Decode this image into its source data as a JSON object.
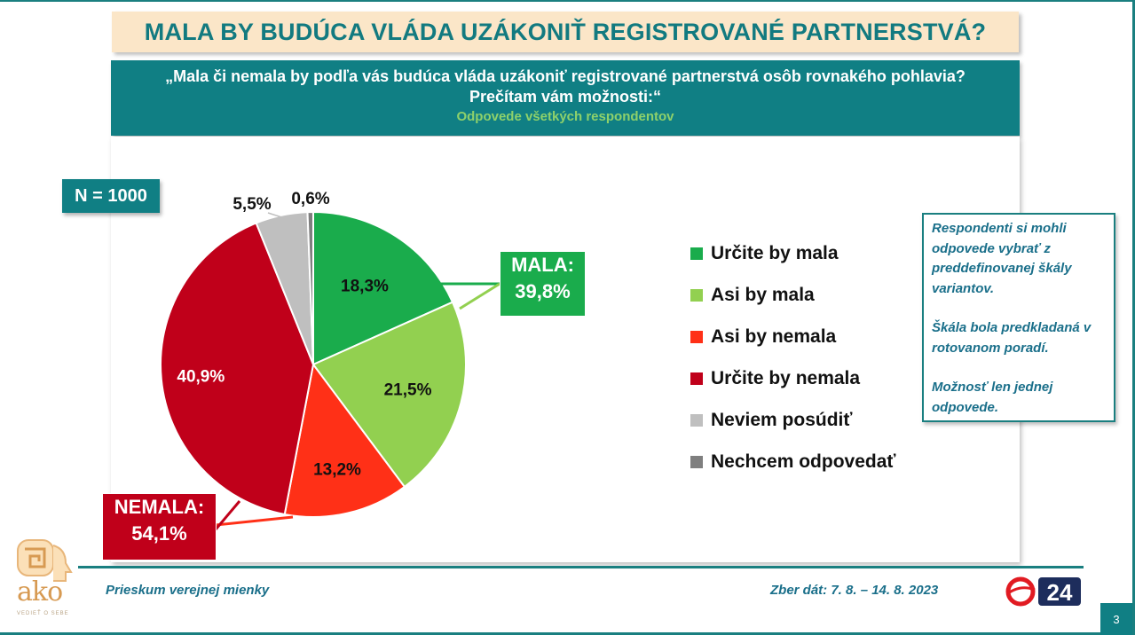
{
  "title": "MALA BY BUDÚCA VLÁDA UZÁKONIŤ REGISTROVANÉ PARTNERSTVÁ?",
  "question": {
    "line1": "„Mala či nemala by podľa vás budúca vláda uzákoniť registrované partnerstvá osôb rovnakého pohlavia?",
    "line2": "Prečítam vám možnosti:“",
    "subtitle": "Odpovede všetkých respondentov"
  },
  "sample": "N = 1000",
  "chart_data": {
    "type": "pie",
    "start_angle_deg": 0,
    "direction": "clockwise",
    "slices": [
      {
        "label": "Určite by mala",
        "value": 18.3,
        "value_label": "18,3%",
        "color": "#1aac4c"
      },
      {
        "label": "Asi by mala",
        "value": 21.5,
        "value_label": "21,5%",
        "color": "#92d050"
      },
      {
        "label": "Asi by nemala",
        "value": 13.2,
        "value_label": "13,2%",
        "color": "#ff3017"
      },
      {
        "label": "Určite by nemala",
        "value": 40.9,
        "value_label": "40,9%",
        "color": "#c0001a"
      },
      {
        "label": "Neviem posúdiť",
        "value": 5.5,
        "value_label": "5,5%",
        "color": "#bfbfbf"
      },
      {
        "label": "Nechcem odpovedať",
        "value": 0.6,
        "value_label": "0,6%",
        "color": "#7f7f7f"
      }
    ],
    "groups": [
      {
        "label": "MALA:",
        "value_label": "39,8%",
        "color": "#1aac4c"
      },
      {
        "label": "NEMALA:",
        "value_label": "54,1%",
        "color": "#c0001a"
      }
    ],
    "legend_position": "right"
  },
  "note": {
    "p1": "Respondenti si mohli odpovede vybrať z preddefinovanej škály variantov.",
    "p2": "Škála bola predkladaná v rotovanom poradí.",
    "p3": "Možnosť len jednej odpovede."
  },
  "footer": {
    "left": "Prieskum verejnej mienky",
    "right": "Zber dát: 7. 8. – 14. 8. 2023",
    "page": "3"
  },
  "brand": {
    "logo_name": "ako",
    "logo_tagline": "VEDIEŤ O SEBE",
    "tv_label": "24"
  }
}
